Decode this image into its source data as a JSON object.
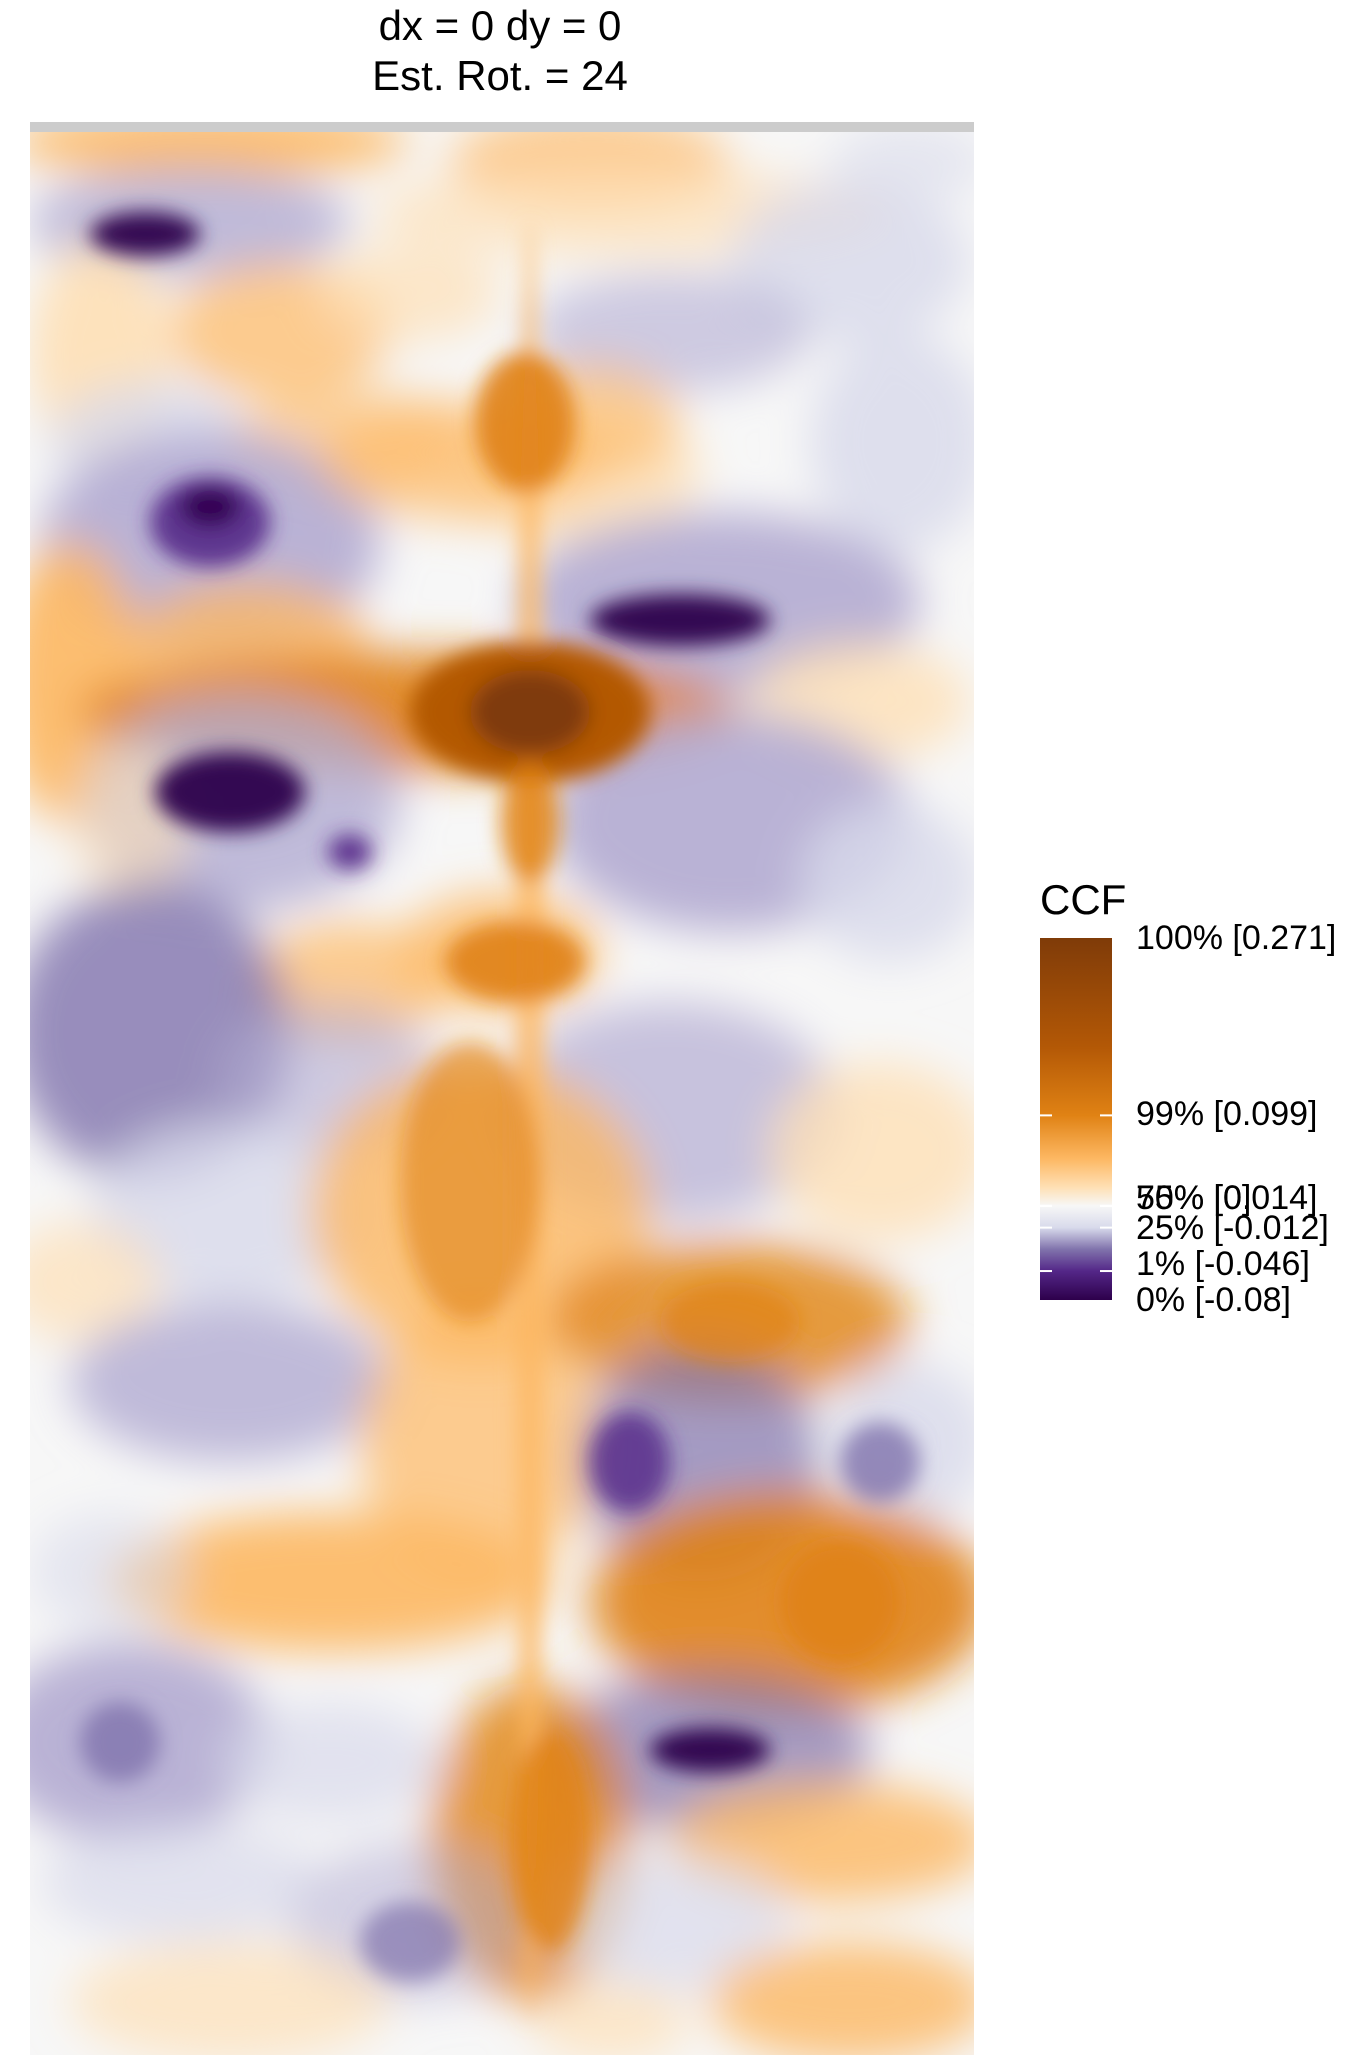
{
  "chart_data": {
    "type": "heatmap",
    "title": "dx = 0 dy = 0",
    "subtitle": "Est. Rot. = 24",
    "legend": {
      "title": "CCF",
      "placement": "right",
      "entries": [
        {
          "label": "100% [0.271]",
          "value": 0.271
        },
        {
          "label": "99% [0.099]",
          "value": 0.099
        },
        {
          "label": "75% [0.014]",
          "value": 0.014
        },
        {
          "label": "50% [0]",
          "value": 0
        },
        {
          "label": "25% [-0.012]",
          "value": -0.012
        },
        {
          "label": "1% [-0.046]",
          "value": -0.046
        },
        {
          "label": "0% [-0.08]",
          "value": -0.08
        }
      ],
      "colors": {
        "max": "#7f3b08",
        "high": "#e08214",
        "mid": "#f7f7f7",
        "low": "#8073ac",
        "min": "#2d004b"
      }
    },
    "value_range": [
      -0.08,
      0.271
    ],
    "grid": false,
    "colors": {
      "top_strip": "#cccccc"
    }
  }
}
